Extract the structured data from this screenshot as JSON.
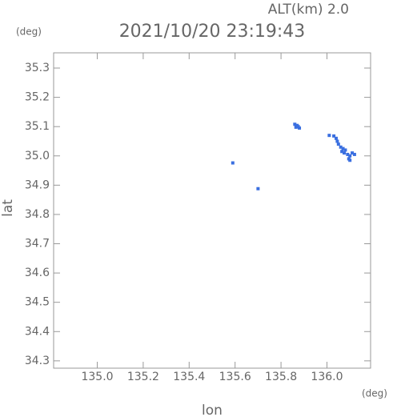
{
  "chart_data": {
    "type": "scatter",
    "altitude_label": "ALT(km) 2.0",
    "title": "2021/10/20 23:19:43",
    "y_unit": "(deg)",
    "x_unit": "(deg)",
    "ylabel": "lat",
    "xlabel": "lon",
    "xlim": [
      134.81,
      136.19
    ],
    "ylim": [
      34.275,
      35.352
    ],
    "xticks": [
      {
        "value": 135,
        "label": "135.0"
      },
      135.2,
      135.4,
      135.6,
      135.8,
      {
        "value": 136,
        "label": "136.0"
      }
    ],
    "yticks": [
      34.3,
      34.4,
      34.5,
      34.6,
      34.7,
      34.8,
      34.9,
      {
        "value": 35,
        "label": "35.0"
      },
      35.1,
      35.2,
      35.3
    ],
    "color": "#3a6fe0",
    "x": [
      135.86,
      135.87,
      135.875,
      135.865,
      135.88,
      135.59,
      135.7,
      136.01,
      136.03,
      136.04,
      136.045,
      136.05,
      136.06,
      136.07,
      136.08,
      136.075,
      136.09,
      136.1,
      136.11,
      136.12,
      136.095,
      136.1,
      136.065
    ],
    "y": [
      35.108,
      35.104,
      35.1,
      35.098,
      35.095,
      34.976,
      34.888,
      35.07,
      35.068,
      35.06,
      35.05,
      35.04,
      35.03,
      35.025,
      35.02,
      35.01,
      35.005,
      35.0,
      35.01,
      35.005,
      34.99,
      34.985,
      35.015
    ]
  }
}
